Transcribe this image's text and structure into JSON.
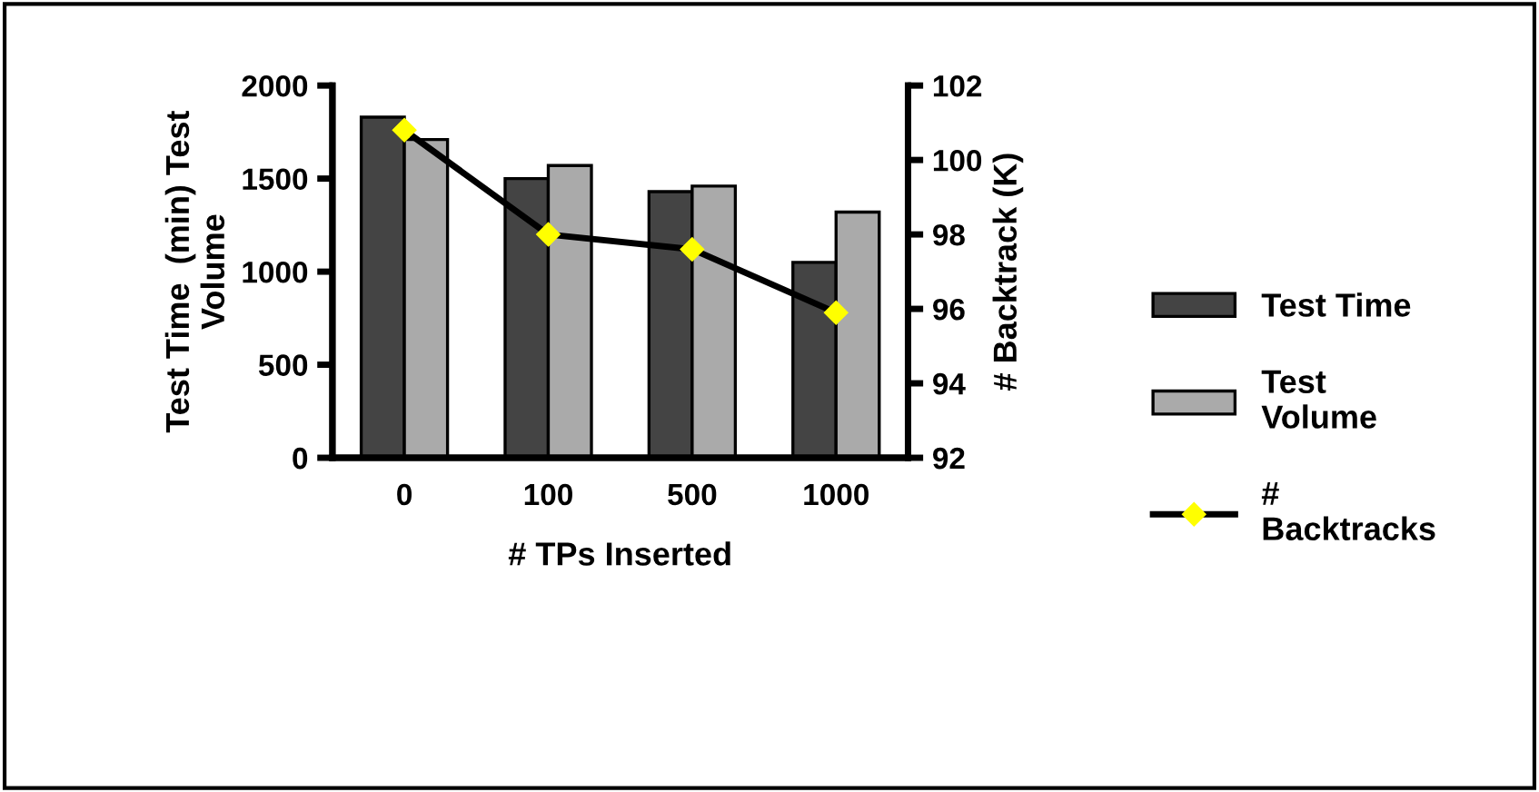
{
  "chart_data": {
    "type": "bar",
    "categories": [
      "0",
      "100",
      "500",
      "1000"
    ],
    "xlabel": "# TPs Inserted",
    "ylabel": "Test Time  (min) Test\nVolume",
    "y2label": "# Backtrack (K)",
    "series": [
      {
        "name": "Test Time",
        "color": "#444444",
        "values": [
          1830,
          1500,
          1430,
          1050
        ]
      },
      {
        "name": "Test\nVolume",
        "color": "#aaaaaa",
        "values": [
          1710,
          1570,
          1460,
          1320
        ]
      },
      {
        "name": "#\nBacktracks",
        "type": "line",
        "axis": "y2",
        "color": "#000000",
        "values": [
          100.8,
          98.0,
          97.6,
          95.9
        ]
      }
    ],
    "ylim": [
      0,
      2000
    ],
    "yticks": [
      0,
      500,
      1000,
      1500,
      2000
    ],
    "y2lim": [
      92,
      102
    ],
    "y2ticks": [
      92,
      94,
      96,
      98,
      100,
      102
    ],
    "marker": "diamond",
    "grid": false,
    "legend": "right"
  }
}
